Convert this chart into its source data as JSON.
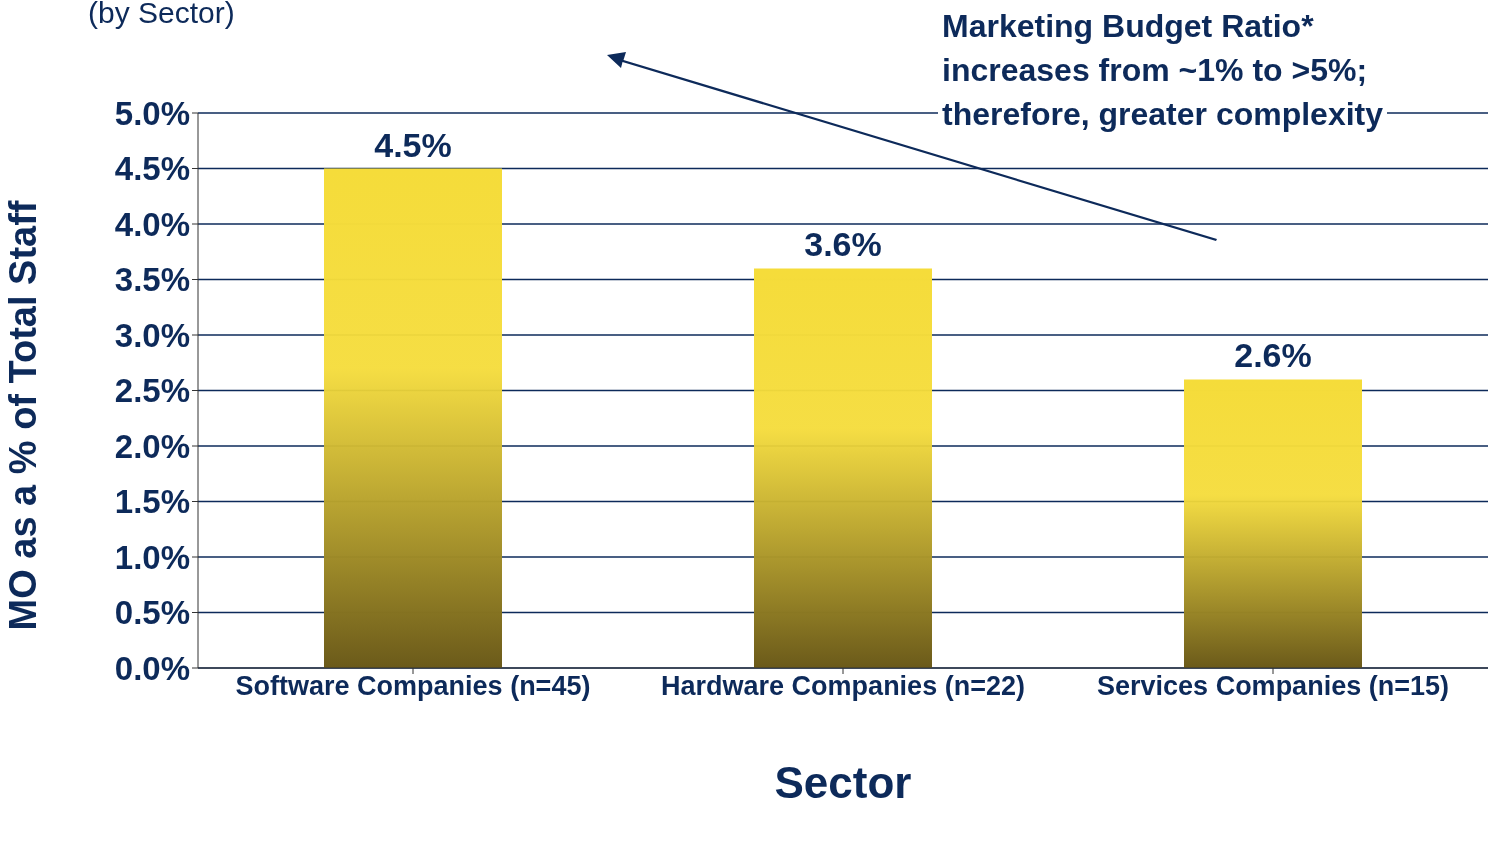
{
  "chart_data": {
    "type": "bar",
    "title": "(by Sector)",
    "xlabel": "Sector",
    "ylabel": "MO as a % of Total Staff",
    "categories": [
      "Software Companies (n=45)",
      "Hardware Companies (n=22)",
      "Services Companies (n=15)"
    ],
    "values": [
      4.5,
      3.6,
      2.6
    ],
    "color": "#f5dc3a",
    "value_labels": [
      "4.5%",
      "3.6%",
      "2.6%"
    ],
    "ylim": [
      0,
      5
    ],
    "yticks": [
      {
        "value": 0,
        "label": "0.0%"
      },
      {
        "value": 0.5,
        "label": "0.5%"
      },
      {
        "value": 1,
        "label": "1.0%"
      },
      {
        "value": 1.5,
        "label": "1.5%"
      },
      {
        "value": 2,
        "label": "2.0%"
      },
      {
        "value": 2.5,
        "label": "2.5%"
      },
      {
        "value": 3,
        "label": "3.0%"
      },
      {
        "value": 3.5,
        "label": "3.5%"
      },
      {
        "value": 4,
        "label": "4.0%"
      },
      {
        "value": 4.5,
        "label": "4.5%"
      },
      {
        "value": 5,
        "label": "5.0%"
      }
    ],
    "grid": "y",
    "legend": false,
    "annotations": [
      "Marketing Budget Ratio*\nincreases from ~1% to >5%;\ntherefore, greater complexity"
    ]
  }
}
